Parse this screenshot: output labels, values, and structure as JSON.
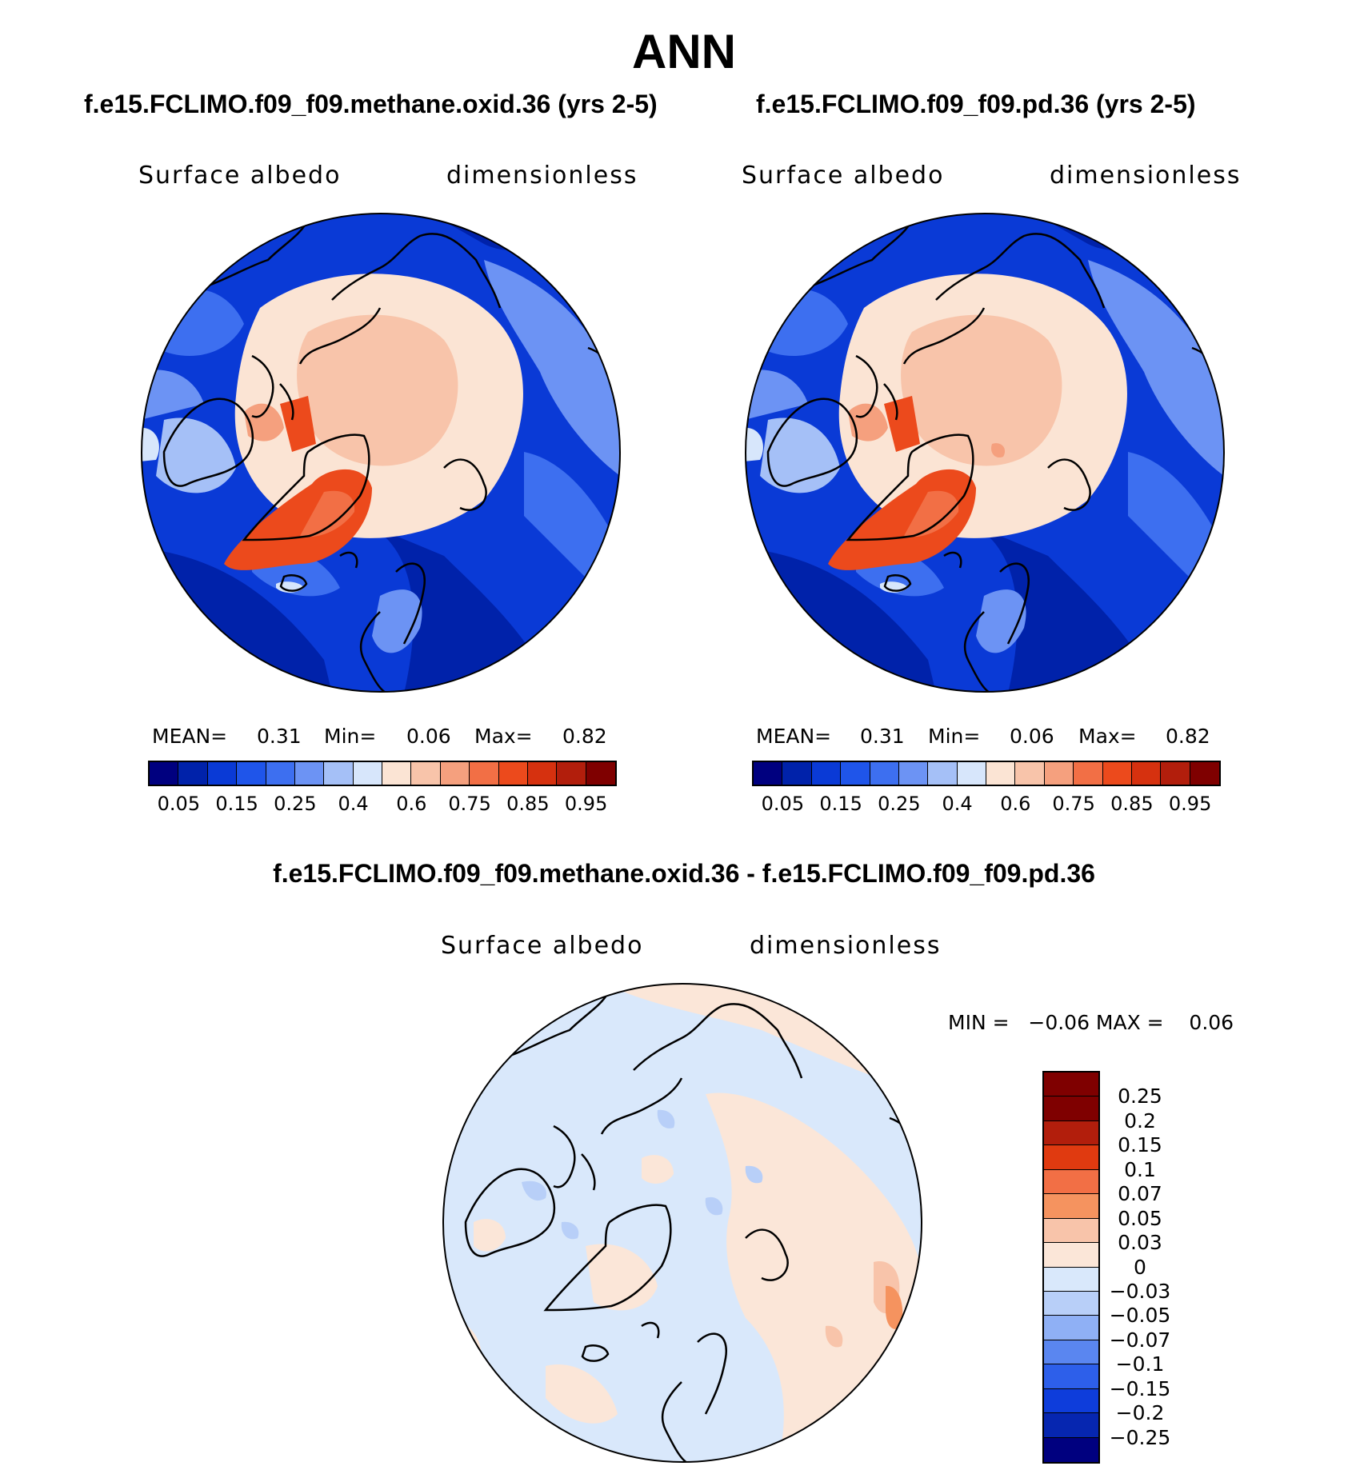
{
  "figure": {
    "season": "ANN",
    "panels": [
      {
        "case_title": "f.e15.FCLIMO.f09_f09.methane.oxid.36 (yrs 2-5)",
        "variable": "Surface albedo",
        "units": "dimensionless",
        "stats": {
          "mean_label": "MEAN=",
          "mean": "0.31",
          "min_label": "Min=",
          "min": "0.06",
          "max_label": "Max=",
          "max": "0.82"
        }
      },
      {
        "case_title": "f.e15.FCLIMO.f09_f09.pd.36 (yrs 2-5)",
        "variable": "Surface albedo",
        "units": "dimensionless",
        "stats": {
          "mean_label": "MEAN=",
          "mean": "0.31",
          "min_label": "Min=",
          "min": "0.06",
          "max_label": "Max=",
          "max": "0.82"
        }
      }
    ],
    "diff_panel": {
      "case_title": "f.e15.FCLIMO.f09_f09.methane.oxid.36 - f.e15.FCLIMO.f09_f09.pd.36",
      "variable": "Surface albedo",
      "units": "dimensionless",
      "stats_line": "MIN =   −0.06 MAX =    0.06"
    }
  },
  "chart_data": [
    {
      "type": "heatmap",
      "projection": "north-polar-stereographic",
      "title": "f.e15.FCLIMO.f09_f09.methane.oxid.36 (yrs 2-5)",
      "variable": "Surface albedo",
      "units": "dimensionless",
      "mean": 0.31,
      "min": 0.06,
      "max": 0.82,
      "colorbar_levels": [
        0.05,
        0.1,
        0.15,
        0.2,
        0.25,
        0.3,
        0.4,
        0.5,
        0.6,
        0.7,
        0.75,
        0.8,
        0.85,
        0.9,
        0.95
      ],
      "colorbar_tick_labels": [
        "0.05",
        "0.15",
        "0.25",
        "0.4",
        "0.6",
        "0.75",
        "0.85",
        "0.95"
      ],
      "colorbar_colors": [
        "#00007f",
        "#0022aa",
        "#0a3ad6",
        "#1f55ea",
        "#3d6ff0",
        "#6c93f4",
        "#a5c0f7",
        "#d7e6fb",
        "#fbe4d4",
        "#f8c4aa",
        "#f5a07e",
        "#f26f45",
        "#ec4a1c",
        "#d6310f",
        "#b21e0c",
        "#7f0000"
      ]
    },
    {
      "type": "heatmap",
      "projection": "north-polar-stereographic",
      "title": "f.e15.FCLIMO.f09_f09.pd.36 (yrs 2-5)",
      "variable": "Surface albedo",
      "units": "dimensionless",
      "mean": 0.31,
      "min": 0.06,
      "max": 0.82,
      "colorbar_levels": [
        0.05,
        0.1,
        0.15,
        0.2,
        0.25,
        0.3,
        0.4,
        0.5,
        0.6,
        0.7,
        0.75,
        0.8,
        0.85,
        0.9,
        0.95
      ],
      "colorbar_tick_labels": [
        "0.05",
        "0.15",
        "0.25",
        "0.4",
        "0.6",
        "0.75",
        "0.85",
        "0.95"
      ],
      "colorbar_colors": [
        "#00007f",
        "#0022aa",
        "#0a3ad6",
        "#1f55ea",
        "#3d6ff0",
        "#6c93f4",
        "#a5c0f7",
        "#d7e6fb",
        "#fbe4d4",
        "#f8c4aa",
        "#f5a07e",
        "#f26f45",
        "#ec4a1c",
        "#d6310f",
        "#b21e0c",
        "#7f0000"
      ]
    },
    {
      "type": "heatmap",
      "projection": "north-polar-stereographic",
      "title": "f.e15.FCLIMO.f09_f09.methane.oxid.36 - f.e15.FCLIMO.f09_f09.pd.36",
      "variable": "Surface albedo",
      "units": "dimensionless",
      "min": -0.06,
      "max": 0.06,
      "colorbar_tick_labels": [
        "0.25",
        "0.2",
        "0.15",
        "0.1",
        "0.07",
        "0.05",
        "0.03",
        "0",
        "−0.03",
        "−0.05",
        "−0.07",
        "−0.1",
        "−0.15",
        "−0.2",
        "−0.25"
      ],
      "colorbar_colors_top_to_bottom": [
        "#7f0000",
        "#b21e0c",
        "#e03a10",
        "#f26f45",
        "#f5935f",
        "#f8c4aa",
        "#fbe6d8",
        "#d9e8fb",
        "#b8cff8",
        "#8fb0f5",
        "#5a86f0",
        "#2d5fea",
        "#0e3ddb",
        "#0626b0",
        "#00007f"
      ]
    }
  ]
}
